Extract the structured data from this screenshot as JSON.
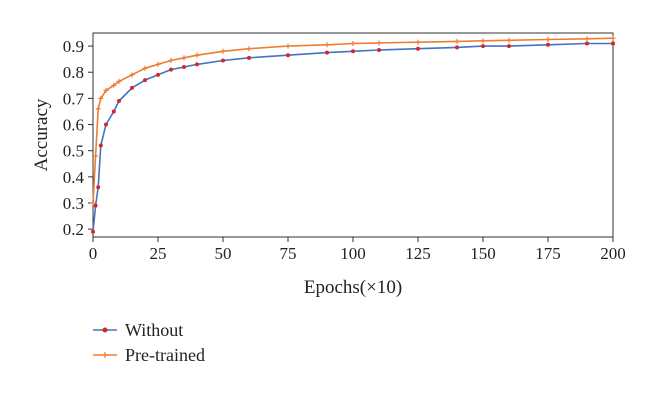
{
  "chart_data": {
    "type": "line",
    "title": "",
    "xlabel": "Epochs(×10)",
    "ylabel": "Accuracy",
    "xlim": [
      0,
      200
    ],
    "ylim": [
      0.17,
      0.95
    ],
    "xticks": [
      0,
      25,
      50,
      75,
      100,
      125,
      150,
      175,
      200
    ],
    "yticks": [
      0.2,
      0.3,
      0.4,
      0.5,
      0.6,
      0.7,
      0.8,
      0.9
    ],
    "grid": false,
    "legend_position": "bottom-left, below plot",
    "x": [
      0,
      1,
      2,
      3,
      5,
      8,
      10,
      15,
      20,
      25,
      30,
      35,
      40,
      50,
      60,
      75,
      90,
      100,
      110,
      125,
      140,
      150,
      160,
      175,
      190,
      200
    ],
    "series": [
      {
        "name": "Without",
        "color": "#4472c4",
        "marker_color": "#d62728",
        "marker": "dot",
        "values": [
          0.19,
          0.29,
          0.36,
          0.52,
          0.6,
          0.65,
          0.69,
          0.74,
          0.77,
          0.79,
          0.81,
          0.82,
          0.83,
          0.845,
          0.855,
          0.865,
          0.875,
          0.88,
          0.885,
          0.89,
          0.895,
          0.9,
          0.9,
          0.905,
          0.91,
          0.91
        ]
      },
      {
        "name": "Pre-trained",
        "color": "#ed7d31",
        "marker_color": "#ed7d31",
        "marker": "plus",
        "values": [
          0.3,
          0.48,
          0.66,
          0.7,
          0.73,
          0.75,
          0.765,
          0.79,
          0.815,
          0.83,
          0.845,
          0.855,
          0.865,
          0.88,
          0.89,
          0.9,
          0.905,
          0.91,
          0.912,
          0.915,
          0.918,
          0.92,
          0.922,
          0.925,
          0.928,
          0.93
        ]
      }
    ]
  }
}
